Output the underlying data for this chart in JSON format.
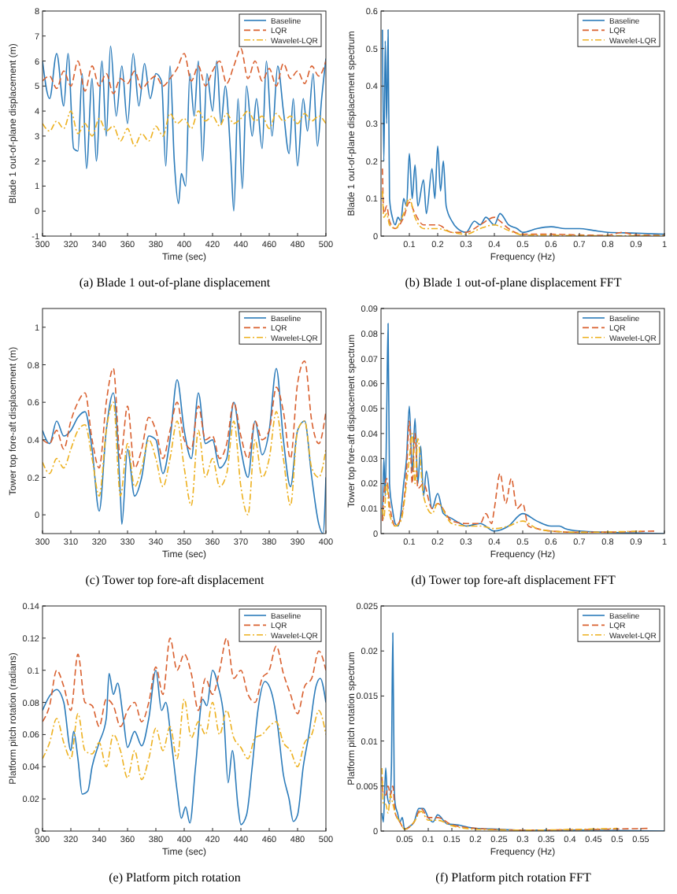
{
  "chart_data": [
    {
      "type": "line",
      "title": "(a) Blade 1 out-of-plane displacement",
      "xlabel": "Time (sec)",
      "ylabel": "Blade 1 out-of-plane displacement (m)",
      "xlim": [
        300,
        500
      ],
      "ylim": [
        -1,
        8
      ],
      "xticks": [
        300,
        320,
        340,
        360,
        380,
        400,
        420,
        440,
        460,
        480,
        500
      ],
      "yticks": [
        -1,
        0,
        1,
        2,
        3,
        4,
        5,
        6,
        7,
        8
      ],
      "legend": "top right",
      "series": [
        {
          "name": "Baseline",
          "color": "#2b7bba",
          "line_style": "solid",
          "x": [
            300,
            305,
            310,
            315,
            318,
            322,
            325,
            328,
            331,
            335,
            338,
            342,
            345,
            348,
            352,
            356,
            360,
            364,
            368,
            372,
            376,
            380,
            384,
            387,
            390,
            393,
            396,
            398,
            401,
            404,
            407,
            410,
            413,
            416,
            420,
            423,
            426,
            429,
            433,
            435,
            438,
            441,
            444,
            448,
            451,
            455,
            458,
            462,
            466,
            470,
            474,
            477,
            480,
            484,
            487,
            491,
            494,
            497,
            500
          ],
          "values": [
            6.0,
            4.5,
            6.3,
            4.2,
            6.3,
            2.5,
            2.4,
            5.5,
            1.7,
            5.3,
            2.0,
            6.0,
            3.0,
            6.6,
            3.8,
            5.8,
            3.5,
            6.3,
            4.2,
            5.9,
            4.5,
            5.5,
            5.2,
            1.8,
            5.8,
            2.0,
            0.3,
            1.5,
            1.0,
            5.5,
            3.8,
            6.0,
            2.0,
            5.5,
            4.0,
            6.0,
            3.5,
            5.0,
            2.0,
            0.0,
            4.5,
            0.9,
            5.0,
            3.0,
            4.5,
            2.5,
            6.0,
            3.0,
            5.8,
            4.0,
            2.3,
            4.5,
            1.8,
            4.5,
            3.2,
            5.5,
            2.6,
            4.5,
            6.1
          ]
        },
        {
          "name": "LQR",
          "color": "#d9602f",
          "line_style": "dashed",
          "x": [
            300,
            305,
            310,
            315,
            320,
            325,
            330,
            335,
            340,
            345,
            350,
            355,
            360,
            365,
            370,
            375,
            380,
            385,
            390,
            395,
            400,
            405,
            410,
            415,
            420,
            425,
            430,
            435,
            440,
            445,
            450,
            455,
            460,
            465,
            470,
            475,
            480,
            485,
            490,
            495,
            500
          ],
          "values": [
            5.2,
            5.4,
            4.9,
            5.6,
            5.0,
            6.0,
            4.8,
            5.8,
            5.0,
            5.5,
            4.7,
            5.3,
            5.1,
            5.6,
            4.9,
            5.2,
            5.4,
            5.0,
            5.3,
            5.7,
            6.3,
            5.2,
            5.8,
            5.0,
            5.6,
            6.0,
            5.1,
            5.8,
            6.5,
            5.3,
            6.0,
            5.2,
            5.7,
            5.0,
            5.9,
            5.3,
            5.6,
            5.1,
            5.8,
            5.4,
            6.0
          ]
        },
        {
          "name": "Wavelet-LQR",
          "color": "#edb120",
          "line_style": "dotted",
          "x": [
            300,
            305,
            310,
            315,
            320,
            325,
            330,
            335,
            340,
            345,
            350,
            355,
            360,
            365,
            370,
            375,
            380,
            385,
            390,
            395,
            400,
            405,
            410,
            415,
            420,
            425,
            430,
            435,
            440,
            445,
            450,
            455,
            460,
            465,
            470,
            475,
            480,
            485,
            490,
            495,
            500
          ],
          "values": [
            3.5,
            3.2,
            3.6,
            3.3,
            4.0,
            3.1,
            3.5,
            3.0,
            3.7,
            3.2,
            3.4,
            2.8,
            3.3,
            2.6,
            3.1,
            2.8,
            3.4,
            3.0,
            3.9,
            3.5,
            3.7,
            3.3,
            4.0,
            3.6,
            3.8,
            3.4,
            3.9,
            3.5,
            3.7,
            4.0,
            3.6,
            3.8,
            3.3,
            3.9,
            3.6,
            3.8,
            3.5,
            3.9,
            3.6,
            3.8,
            3.5
          ]
        }
      ]
    },
    {
      "type": "line",
      "title": "(b) Blade 1 out-of-plane displacement FFT",
      "xlabel": "Frequency (Hz)",
      "ylabel": "Blade 1 out-of-plane displacement spectrum",
      "xlim": [
        0,
        1
      ],
      "ylim": [
        0,
        0.6
      ],
      "xticks": [
        0.1,
        0.2,
        0.3,
        0.4,
        0.5,
        0.6,
        0.7,
        0.8,
        0.9,
        1
      ],
      "yticks": [
        0,
        0.1,
        0.2,
        0.3,
        0.4,
        0.5,
        0.6
      ],
      "legend": "top right",
      "series": [
        {
          "name": "Baseline",
          "color": "#2b7bba",
          "line_style": "solid",
          "x": [
            0.005,
            0.01,
            0.015,
            0.02,
            0.025,
            0.03,
            0.04,
            0.05,
            0.06,
            0.07,
            0.08,
            0.09,
            0.1,
            0.11,
            0.12,
            0.13,
            0.15,
            0.16,
            0.18,
            0.19,
            0.2,
            0.21,
            0.22,
            0.23,
            0.25,
            0.27,
            0.3,
            0.33,
            0.35,
            0.37,
            0.4,
            0.42,
            0.45,
            0.48,
            0.5,
            0.55,
            0.6,
            0.65,
            0.7,
            0.75,
            0.8,
            0.9,
            1.0
          ],
          "values": [
            0.55,
            0.2,
            0.52,
            0.3,
            0.55,
            0.1,
            0.05,
            0.03,
            0.05,
            0.04,
            0.1,
            0.08,
            0.22,
            0.1,
            0.19,
            0.08,
            0.15,
            0.06,
            0.18,
            0.1,
            0.24,
            0.12,
            0.2,
            0.08,
            0.04,
            0.02,
            0.01,
            0.04,
            0.03,
            0.05,
            0.03,
            0.06,
            0.03,
            0.02,
            0.01,
            0.02,
            0.025,
            0.02,
            0.02,
            0.015,
            0.01,
            0.008,
            0.005
          ]
        },
        {
          "name": "LQR",
          "color": "#d9602f",
          "line_style": "dashed",
          "x": [
            0.005,
            0.01,
            0.02,
            0.03,
            0.05,
            0.08,
            0.1,
            0.12,
            0.15,
            0.2,
            0.25,
            0.3,
            0.35,
            0.4,
            0.42,
            0.45,
            0.5,
            0.6,
            0.7,
            0.8,
            0.85,
            0.9,
            1.0
          ],
          "values": [
            0.18,
            0.06,
            0.08,
            0.04,
            0.02,
            0.05,
            0.09,
            0.06,
            0.03,
            0.03,
            0.01,
            0.01,
            0.03,
            0.05,
            0.04,
            0.02,
            0.005,
            0.005,
            0.003,
            0.002,
            0.01,
            0.003,
            0.002
          ]
        },
        {
          "name": "Wavelet-LQR",
          "color": "#edb120",
          "line_style": "dotted",
          "x": [
            0.005,
            0.01,
            0.02,
            0.03,
            0.05,
            0.08,
            0.1,
            0.12,
            0.15,
            0.2,
            0.25,
            0.3,
            0.35,
            0.4,
            0.45,
            0.5,
            0.6,
            0.8,
            1.0
          ],
          "values": [
            0.12,
            0.05,
            0.06,
            0.03,
            0.02,
            0.06,
            0.1,
            0.05,
            0.02,
            0.02,
            0.01,
            0.005,
            0.02,
            0.03,
            0.015,
            0.003,
            0.002,
            0.001,
            0.001
          ]
        }
      ]
    },
    {
      "type": "line",
      "title": "(c) Tower top fore-aft displacement",
      "xlabel": "Time (sec)",
      "ylabel": "Tower top fore-aft displacement (m)",
      "xlim": [
        300,
        400
      ],
      "ylim": [
        -0.1,
        1.1
      ],
      "xticks": [
        300,
        310,
        320,
        330,
        340,
        350,
        360,
        370,
        380,
        390,
        400
      ],
      "yticks": [
        0,
        0.2,
        0.4,
        0.6,
        0.8,
        1
      ],
      "legend": "top right",
      "series": [
        {
          "name": "Baseline",
          "color": "#2b7bba",
          "line_style": "solid",
          "x": [
            300,
            302.5,
            305,
            307.5,
            310,
            312.5,
            315,
            317.5,
            320,
            322.5,
            325,
            327.5,
            328,
            330,
            332.5,
            335,
            337.5,
            340,
            342.5,
            345,
            347.5,
            350,
            352.5,
            355,
            357.5,
            360,
            362.5,
            365,
            367.5,
            370,
            372.5,
            375,
            377.5,
            380,
            382.5,
            385,
            387.5,
            390,
            392.5,
            395,
            397.5,
            399,
            400
          ],
          "values": [
            0.45,
            0.38,
            0.5,
            0.42,
            0.45,
            0.52,
            0.55,
            0.35,
            0.02,
            0.45,
            0.65,
            0.1,
            -0.05,
            0.35,
            0.1,
            0.2,
            0.42,
            0.4,
            0.22,
            0.4,
            0.72,
            0.45,
            0.3,
            0.65,
            0.38,
            0.4,
            0.25,
            0.3,
            0.6,
            0.35,
            0.2,
            0.5,
            0.32,
            0.45,
            0.78,
            0.4,
            0.15,
            0.45,
            0.5,
            0.2,
            -0.05,
            -0.1,
            0.2
          ]
        },
        {
          "name": "LQR",
          "color": "#d9602f",
          "line_style": "dashed",
          "x": [
            300,
            302.5,
            305,
            307.5,
            310,
            312.5,
            315,
            317.5,
            320,
            322.5,
            325,
            327.5,
            330,
            332.5,
            335,
            337.5,
            340,
            342.5,
            345,
            347.5,
            350,
            352.5,
            355,
            357.5,
            360,
            362.5,
            365,
            367.5,
            370,
            372.5,
            375,
            377.5,
            380,
            382.5,
            385,
            387.5,
            390,
            392.5,
            395,
            397.5,
            400
          ],
          "values": [
            0.4,
            0.38,
            0.45,
            0.35,
            0.5,
            0.6,
            0.65,
            0.4,
            0.25,
            0.6,
            0.78,
            0.3,
            0.58,
            0.25,
            0.35,
            0.52,
            0.45,
            0.3,
            0.45,
            0.6,
            0.4,
            0.35,
            0.58,
            0.4,
            0.42,
            0.3,
            0.38,
            0.6,
            0.42,
            0.3,
            0.5,
            0.4,
            0.45,
            0.68,
            0.55,
            0.3,
            0.7,
            0.82,
            0.5,
            0.38,
            0.55
          ]
        },
        {
          "name": "Wavelet-LQR",
          "color": "#edb120",
          "line_style": "dotted",
          "x": [
            300,
            302.5,
            305,
            307.5,
            310,
            312.5,
            315,
            317.5,
            320,
            322.5,
            325,
            327.5,
            330,
            332.5,
            335,
            337.5,
            340,
            342.5,
            345,
            347.5,
            350,
            352.5,
            355,
            357.5,
            360,
            362.5,
            365,
            367.5,
            370,
            372.5,
            375,
            377.5,
            380,
            382.5,
            385,
            387.5,
            390,
            392.5,
            395,
            397.5,
            400
          ],
          "values": [
            0.28,
            0.22,
            0.3,
            0.25,
            0.35,
            0.45,
            0.48,
            0.3,
            0.1,
            0.45,
            0.6,
            0.1,
            0.38,
            0.15,
            0.25,
            0.4,
            0.3,
            0.15,
            0.3,
            0.5,
            0.25,
            0.05,
            0.45,
            0.2,
            0.3,
            0.15,
            0.22,
            0.5,
            0.15,
            0.0,
            0.4,
            0.2,
            0.3,
            0.55,
            0.3,
            0.05,
            0.45,
            0.5,
            0.25,
            0.2,
            0.35
          ]
        }
      ]
    },
    {
      "type": "line",
      "title": "(d) Tower top fore-aft displacement FFT",
      "xlabel": "Frequency (Hz)",
      "ylabel": "Tower top fore-aft displacement spectrum",
      "xlim": [
        0,
        1
      ],
      "ylim": [
        0,
        0.09
      ],
      "xticks": [
        0.1,
        0.2,
        0.3,
        0.4,
        0.5,
        0.6,
        0.7,
        0.8,
        0.9,
        1
      ],
      "yticks": [
        0,
        0.01,
        0.02,
        0.03,
        0.04,
        0.05,
        0.06,
        0.07,
        0.08,
        0.09
      ],
      "legend": "top right",
      "series": [
        {
          "name": "Baseline",
          "color": "#2b7bba",
          "line_style": "solid",
          "x": [
            0.005,
            0.01,
            0.015,
            0.02,
            0.025,
            0.03,
            0.04,
            0.05,
            0.06,
            0.07,
            0.08,
            0.09,
            0.1,
            0.11,
            0.12,
            0.13,
            0.14,
            0.15,
            0.16,
            0.18,
            0.2,
            0.22,
            0.25,
            0.28,
            0.3,
            0.35,
            0.4,
            0.45,
            0.5,
            0.55,
            0.6,
            0.63,
            0.65,
            0.7,
            0.8,
            1.0
          ],
          "values": [
            0.005,
            0.03,
            0.015,
            0.047,
            0.084,
            0.02,
            0.01,
            0.004,
            0.003,
            0.008,
            0.02,
            0.03,
            0.051,
            0.025,
            0.046,
            0.02,
            0.035,
            0.015,
            0.025,
            0.01,
            0.016,
            0.008,
            0.006,
            0.004,
            0.003,
            0.004,
            0.001,
            0.003,
            0.008,
            0.005,
            0.003,
            0.003,
            0.002,
            0.001,
            0.0005,
            0
          ]
        },
        {
          "name": "LQR",
          "color": "#d9602f",
          "line_style": "dashed",
          "x": [
            0.005,
            0.01,
            0.02,
            0.03,
            0.05,
            0.07,
            0.09,
            0.1,
            0.11,
            0.12,
            0.13,
            0.15,
            0.18,
            0.2,
            0.25,
            0.3,
            0.35,
            0.37,
            0.39,
            0.4,
            0.42,
            0.44,
            0.46,
            0.48,
            0.5,
            0.52,
            0.55,
            0.6,
            0.7,
            0.97
          ],
          "values": [
            0.005,
            0.015,
            0.022,
            0.012,
            0.003,
            0.006,
            0.025,
            0.045,
            0.02,
            0.04,
            0.018,
            0.02,
            0.01,
            0.012,
            0.005,
            0.004,
            0.004,
            0.008,
            0.004,
            0.01,
            0.024,
            0.012,
            0.022,
            0.01,
            0.012,
            0.003,
            0.002,
            0.001,
            0.0005,
            0.001
          ]
        },
        {
          "name": "Wavelet-LQR",
          "color": "#edb120",
          "line_style": "dotted",
          "x": [
            0.005,
            0.01,
            0.02,
            0.03,
            0.05,
            0.07,
            0.09,
            0.1,
            0.11,
            0.12,
            0.13,
            0.15,
            0.18,
            0.2,
            0.25,
            0.3,
            0.35,
            0.4,
            0.45,
            0.5,
            0.55,
            0.6,
            0.7,
            0.92
          ],
          "values": [
            0.01,
            0.006,
            0.02,
            0.008,
            0.003,
            0.005,
            0.02,
            0.03,
            0.04,
            0.02,
            0.038,
            0.015,
            0.008,
            0.012,
            0.004,
            0.003,
            0.003,
            0.002,
            0.003,
            0.005,
            0.002,
            0.001,
            0.0005,
            0.001
          ]
        }
      ]
    },
    {
      "type": "line",
      "title": "(e) Platform pitch rotation",
      "xlabel": "Time (sec)",
      "ylabel": "Platform pitch rotation (radians)",
      "xlim": [
        300,
        500
      ],
      "ylim": [
        0,
        0.14
      ],
      "xticks": [
        300,
        320,
        340,
        360,
        380,
        400,
        420,
        440,
        460,
        480,
        500
      ],
      "yticks": [
        0,
        0.02,
        0.04,
        0.06,
        0.08,
        0.1,
        0.12,
        0.14
      ],
      "legend": "top right",
      "series": [
        {
          "name": "Baseline",
          "color": "#2b7bba",
          "line_style": "solid",
          "x": [
            300,
            305,
            310,
            315,
            320,
            322,
            325,
            328,
            332,
            335,
            340,
            345,
            347,
            350,
            353,
            357,
            360,
            365,
            370,
            375,
            380,
            384,
            387,
            391,
            395,
            398,
            401,
            404,
            408,
            413,
            416,
            420,
            424,
            428,
            431,
            434,
            438,
            440,
            444,
            448,
            452,
            457,
            462,
            466,
            470,
            474,
            477,
            480,
            484,
            488,
            493,
            496,
            500
          ],
          "values": [
            0.075,
            0.084,
            0.088,
            0.08,
            0.05,
            0.062,
            0.045,
            0.023,
            0.025,
            0.04,
            0.055,
            0.07,
            0.098,
            0.085,
            0.092,
            0.07,
            0.052,
            0.062,
            0.053,
            0.07,
            0.1,
            0.075,
            0.08,
            0.055,
            0.025,
            0.008,
            0.015,
            0.005,
            0.04,
            0.082,
            0.078,
            0.1,
            0.09,
            0.07,
            0.03,
            0.05,
            0.015,
            0.004,
            0.01,
            0.04,
            0.075,
            0.093,
            0.085,
            0.065,
            0.035,
            0.02,
            0.006,
            0.01,
            0.04,
            0.06,
            0.09,
            0.095,
            0.08
          ]
        },
        {
          "name": "LQR",
          "color": "#d9602f",
          "line_style": "dashed",
          "x": [
            300,
            305,
            310,
            315,
            320,
            325,
            330,
            335,
            340,
            345,
            350,
            355,
            360,
            365,
            370,
            375,
            380,
            385,
            390,
            395,
            400,
            405,
            410,
            415,
            420,
            425,
            430,
            435,
            440,
            445,
            450,
            455,
            460,
            465,
            470,
            475,
            480,
            485,
            490,
            495,
            500
          ],
          "values": [
            0.068,
            0.078,
            0.1,
            0.09,
            0.075,
            0.11,
            0.08,
            0.078,
            0.065,
            0.082,
            0.078,
            0.065,
            0.075,
            0.08,
            0.068,
            0.08,
            0.102,
            0.085,
            0.12,
            0.1,
            0.11,
            0.098,
            0.075,
            0.095,
            0.085,
            0.1,
            0.12,
            0.095,
            0.1,
            0.085,
            0.08,
            0.095,
            0.1,
            0.115,
            0.098,
            0.085,
            0.073,
            0.09,
            0.095,
            0.112,
            0.1
          ]
        },
        {
          "name": "Wavelet-LQR",
          "color": "#edb120",
          "line_style": "dotted",
          "x": [
            300,
            305,
            310,
            315,
            320,
            325,
            330,
            335,
            340,
            345,
            350,
            355,
            360,
            365,
            370,
            375,
            380,
            385,
            390,
            395,
            400,
            405,
            410,
            415,
            420,
            425,
            430,
            435,
            440,
            445,
            450,
            455,
            460,
            465,
            470,
            475,
            480,
            485,
            490,
            495,
            500
          ],
          "values": [
            0.045,
            0.055,
            0.07,
            0.055,
            0.045,
            0.073,
            0.05,
            0.048,
            0.055,
            0.04,
            0.06,
            0.05,
            0.033,
            0.05,
            0.032,
            0.045,
            0.064,
            0.05,
            0.065,
            0.045,
            0.082,
            0.058,
            0.068,
            0.06,
            0.08,
            0.06,
            0.075,
            0.058,
            0.052,
            0.045,
            0.058,
            0.06,
            0.065,
            0.068,
            0.055,
            0.05,
            0.04,
            0.055,
            0.06,
            0.075,
            0.06
          ]
        }
      ]
    },
    {
      "type": "line",
      "title": "(f) Platform pitch rotation FFT",
      "xlabel": "Frequency (Hz)",
      "ylabel": "Platform pitch rotation spectrum",
      "xlim": [
        0,
        0.6
      ],
      "ylim": [
        0,
        0.025
      ],
      "xticks": [
        0.05,
        0.1,
        0.15,
        0.2,
        0.25,
        0.3,
        0.35,
        0.4,
        0.45,
        0.5,
        0.55
      ],
      "yticks": [
        0,
        0.005,
        0.01,
        0.015,
        0.02,
        0.025
      ],
      "legend": "top right",
      "series": [
        {
          "name": "Baseline",
          "color": "#2b7bba",
          "line_style": "solid",
          "x": [
            0.002,
            0.005,
            0.01,
            0.013,
            0.018,
            0.022,
            0.025,
            0.028,
            0.03,
            0.035,
            0.04,
            0.045,
            0.05,
            0.06,
            0.07,
            0.08,
            0.09,
            0.1,
            0.11,
            0.12,
            0.14,
            0.16,
            0.2,
            0.25,
            0.3,
            0.4,
            0.6
          ],
          "values": [
            0.002,
            0.001,
            0.007,
            0.004,
            0.003,
            0.007,
            0.022,
            0.005,
            0.003,
            0.002,
            0.001,
            0.0015,
            0.0002,
            0.0005,
            0.001,
            0.0025,
            0.0025,
            0.0015,
            0.001,
            0.0018,
            0.0008,
            0.0007,
            0.0003,
            0.0002,
            0.0001,
            0.0001,
            0
          ]
        },
        {
          "name": "LQR",
          "color": "#d9602f",
          "line_style": "dashed",
          "x": [
            0.002,
            0.005,
            0.01,
            0.015,
            0.02,
            0.025,
            0.03,
            0.04,
            0.05,
            0.07,
            0.085,
            0.1,
            0.12,
            0.15,
            0.2,
            0.3,
            0.57
          ],
          "values": [
            0.006,
            0.004,
            0.004,
            0.005,
            0.004,
            0.005,
            0.002,
            0.001,
            0.0002,
            0.001,
            0.0025,
            0.0015,
            0.0015,
            0.0007,
            0.0003,
            0.0001,
            0.0003
          ]
        },
        {
          "name": "Wavelet-LQR",
          "color": "#edb120",
          "line_style": "dotted",
          "x": [
            0.002,
            0.005,
            0.01,
            0.015,
            0.02,
            0.025,
            0.03,
            0.04,
            0.05,
            0.07,
            0.085,
            0.1,
            0.12,
            0.15,
            0.2,
            0.3,
            0.5
          ],
          "values": [
            0.007,
            0.003,
            0.003,
            0.002,
            0.004,
            0.003,
            0.002,
            0.001,
            0.0002,
            0.001,
            0.0022,
            0.0012,
            0.0012,
            0.0006,
            0.0002,
            0.0001,
            0.0003
          ]
        }
      ]
    }
  ]
}
